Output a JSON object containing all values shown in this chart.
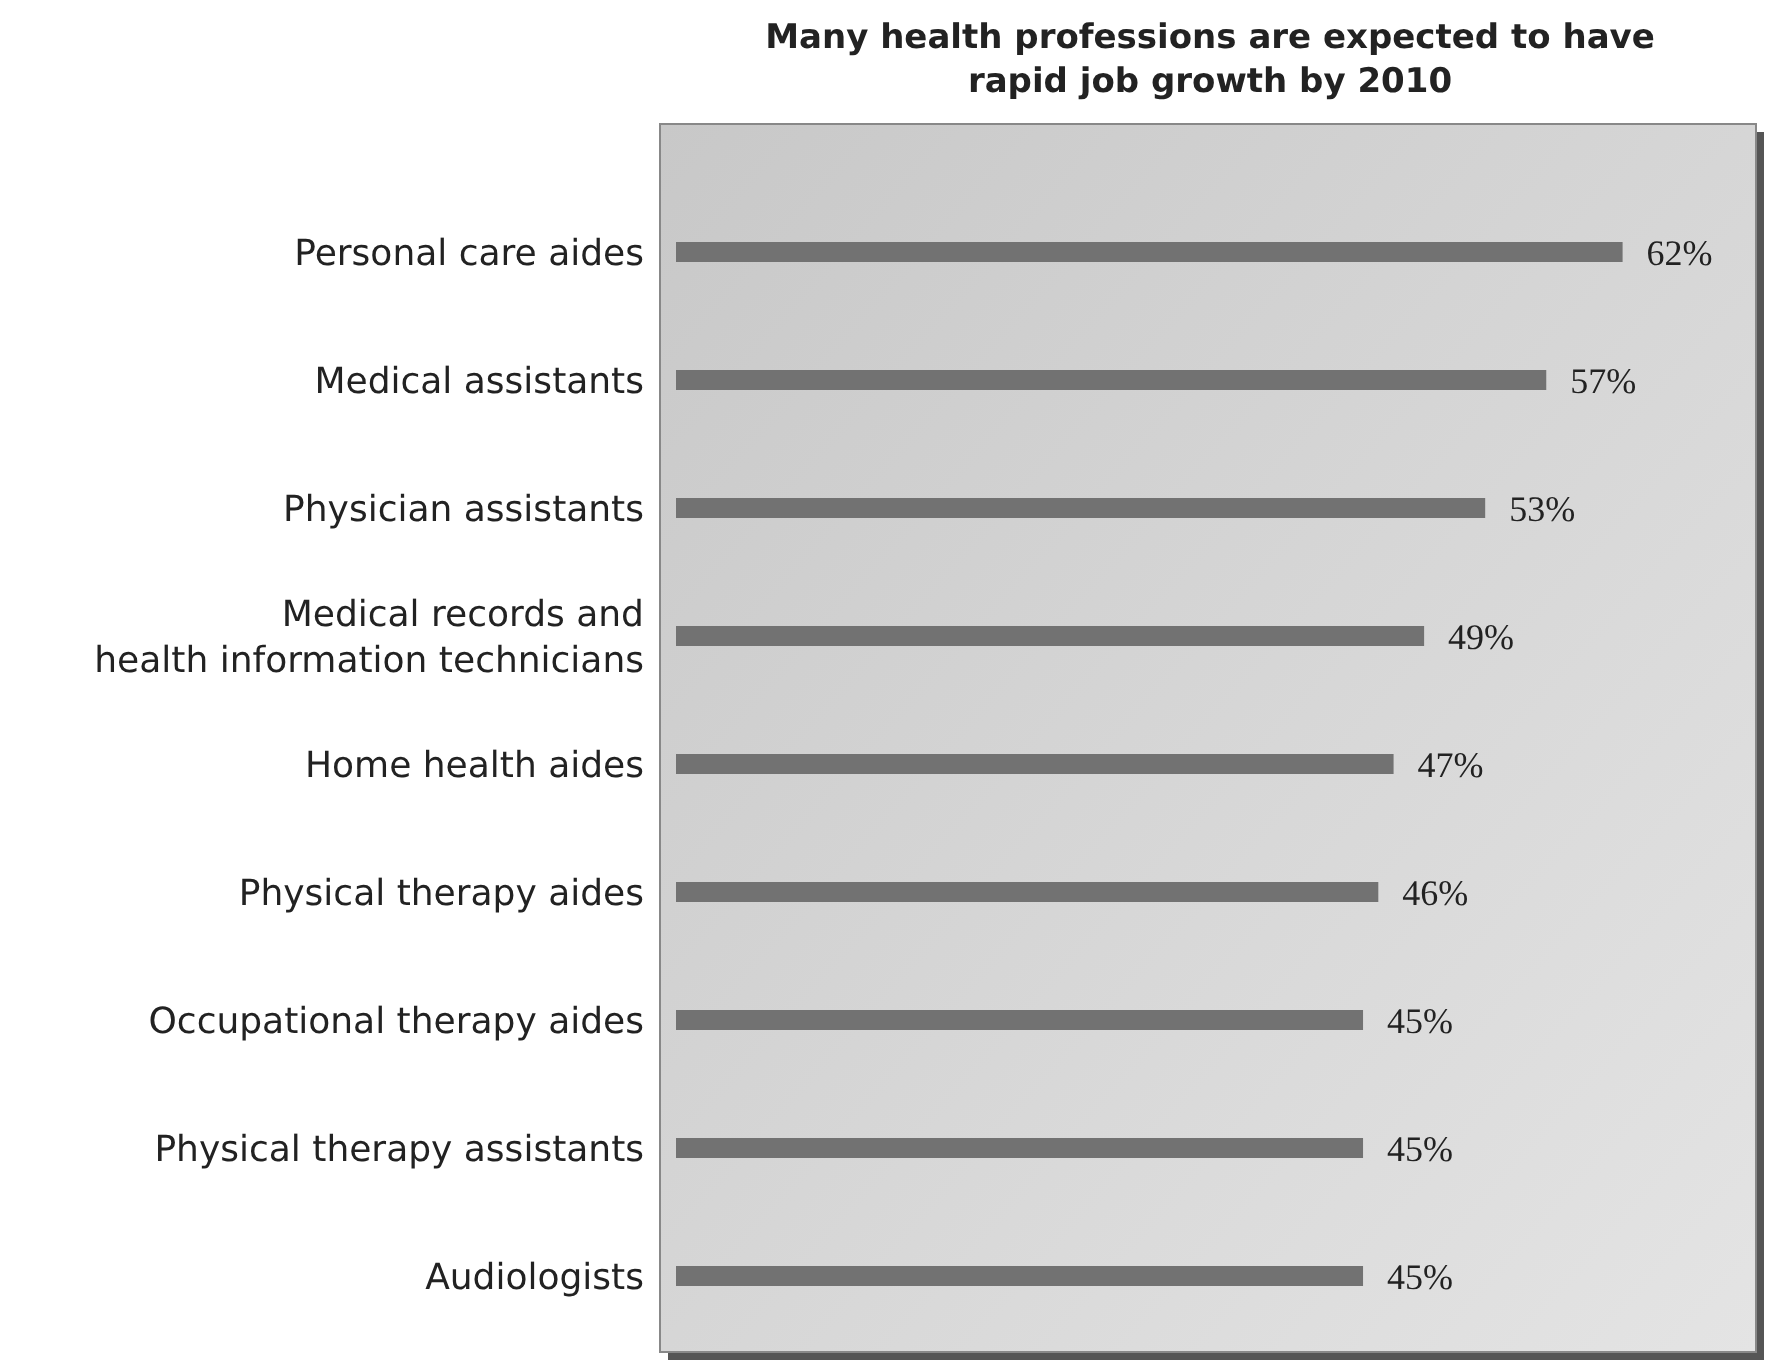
{
  "chart_data": {
    "type": "bar",
    "orientation": "horizontal",
    "title": "Many health professions are expected to have\nrapid job growth by 2010",
    "categories": [
      "Personal care aides",
      "Medical assistants",
      "Physician assistants",
      "Medical records and\nhealth information technicians",
      "Home health aides",
      "Physical therapy aides",
      "Occupational therapy aides",
      "Physical therapy assistants",
      "Audiologists"
    ],
    "values": [
      62,
      57,
      53,
      49,
      47,
      46,
      45,
      45,
      45
    ],
    "value_labels": [
      "62%",
      "57%",
      "53%",
      "49%",
      "47%",
      "46%",
      "45%",
      "45%",
      "45%"
    ],
    "color": "#727272",
    "xlim": [
      0,
      71
    ]
  }
}
